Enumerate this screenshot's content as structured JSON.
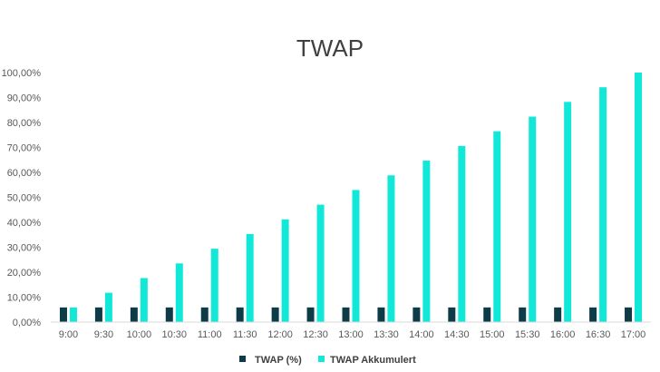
{
  "chart_data": {
    "type": "bar",
    "title": "TWAP",
    "categories": [
      "9:00",
      "9:30",
      "10:00",
      "10:30",
      "11:00",
      "11:30",
      "12:00",
      "12:30",
      "13:00",
      "13:30",
      "14:00",
      "14:30",
      "15:00",
      "15:30",
      "16:00",
      "16:30",
      "17:00"
    ],
    "series": [
      {
        "name": "TWAP (%)",
        "color": "#0d3c48",
        "values": [
          5.88,
          5.88,
          5.88,
          5.88,
          5.88,
          5.88,
          5.88,
          5.88,
          5.88,
          5.88,
          5.88,
          5.88,
          5.88,
          5.88,
          5.88,
          5.88,
          5.88
        ]
      },
      {
        "name": "TWAP Akkumulert",
        "color": "#12e8d8",
        "values": [
          5.88,
          11.76,
          17.65,
          23.53,
          29.41,
          35.29,
          41.18,
          47.06,
          52.94,
          58.82,
          64.71,
          70.59,
          76.47,
          82.35,
          88.24,
          94.12,
          100.0
        ]
      }
    ],
    "yticks": [
      "0,00%",
      "10,00%",
      "20,00%",
      "30,00%",
      "40,00%",
      "50,00%",
      "60,00%",
      "70,00%",
      "80,00%",
      "90,00%",
      "100,00%"
    ],
    "ylim": [
      0,
      100
    ],
    "grid": false,
    "legend": "bottom"
  }
}
